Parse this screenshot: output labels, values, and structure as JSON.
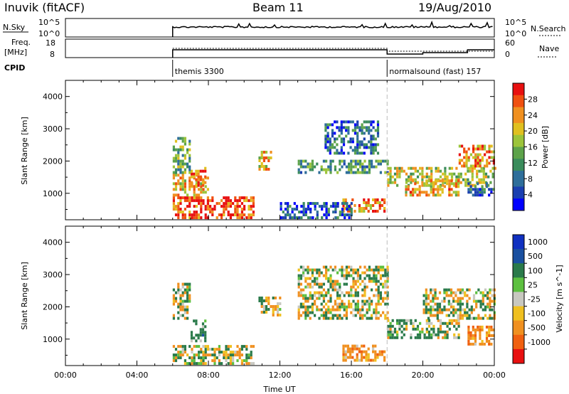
{
  "header": {
    "station": "Inuvik (fitACF)",
    "beam": "Beam 11",
    "date": "19/Aug/2010"
  },
  "status_panel": {
    "nsky_label": "N.Sky",
    "nsky_ticks": [
      "10^5",
      "10^0"
    ],
    "nsearch_label": "N.Search",
    "nsearch_ticks": [
      "10^5",
      "10^0"
    ],
    "freq_label": "Freq.",
    "freq_unit": "[MHz]",
    "freq_ticks": [
      "18",
      "8"
    ],
    "nave_label": "Nave",
    "nave_ticks": [
      "60",
      "0"
    ],
    "cpid_label": "CPID",
    "cpid_segments": [
      {
        "label": "themis 3300",
        "start_hour": 6.0
      },
      {
        "label": "normalsound (fast) 157",
        "start_hour": 18.0
      }
    ]
  },
  "chart_data": [
    {
      "type": "heatmap",
      "title": "",
      "xlabel": "",
      "ylabel": "Slant Range [km]",
      "xlim": [
        0,
        24
      ],
      "ylim": [
        180,
        4500
      ],
      "ytick_labels": [
        "1000",
        "2000",
        "3000",
        "4000"
      ],
      "colorbar": {
        "label": "Power [dB]",
        "range": [
          0,
          32
        ],
        "tick_labels": [
          "4",
          "8",
          "12",
          "16",
          "20",
          "24",
          "28"
        ]
      },
      "marker_line_hour": 18.0,
      "data_coverage_start_hour": 6.0,
      "blobs": [
        {
          "t0": 6.0,
          "t1": 10.5,
          "r0": 200,
          "r1": 900,
          "power": 28
        },
        {
          "t0": 6.0,
          "t1": 8.0,
          "r0": 900,
          "r1": 1600,
          "power": 22
        },
        {
          "t0": 7.0,
          "t1": 7.8,
          "r0": 1200,
          "r1": 1800,
          "power": 26
        },
        {
          "t0": 6.0,
          "t1": 7.0,
          "r0": 1600,
          "r1": 2700,
          "power": 14
        },
        {
          "t0": 10.8,
          "t1": 11.5,
          "r0": 1700,
          "r1": 2300,
          "power": 22
        },
        {
          "t0": 13.0,
          "t1": 18.0,
          "r0": 1600,
          "r1": 2000,
          "power": 12
        },
        {
          "t0": 14.5,
          "t1": 17.5,
          "r0": 2200,
          "r1": 3200,
          "power": 8
        },
        {
          "t0": 15.5,
          "t1": 17.8,
          "r0": 400,
          "r1": 800,
          "power": 24
        },
        {
          "t0": 18.0,
          "t1": 24.0,
          "r0": 1200,
          "r1": 1800,
          "power": 18
        },
        {
          "t0": 19.0,
          "t1": 22.0,
          "r0": 900,
          "r1": 1400,
          "power": 22
        },
        {
          "t0": 22.0,
          "t1": 24.0,
          "r0": 1800,
          "r1": 2500,
          "power": 24
        },
        {
          "t0": 22.5,
          "t1": 24.0,
          "r0": 900,
          "r1": 1300,
          "power": 8
        },
        {
          "t0": 12.0,
          "t1": 16.0,
          "r0": 200,
          "r1": 700,
          "power": 6
        }
      ]
    },
    {
      "type": "heatmap",
      "title": "",
      "xlabel": "Time UT",
      "ylabel": "Slant Range [km]",
      "xlim": [
        0,
        24
      ],
      "ylim": [
        180,
        4500
      ],
      "xtick_labels": [
        "00:00",
        "04:00",
        "08:00",
        "12:00",
        "16:00",
        "20:00",
        "00:00"
      ],
      "ytick_labels": [
        "1000",
        "2000",
        "3000",
        "4000"
      ],
      "colorbar": {
        "label": "Velocity [m s^-1]",
        "tick_labels": [
          "1000",
          "500",
          "100",
          "25",
          "-25",
          "-100",
          "-500",
          "-1000"
        ]
      },
      "marker_line_hour": 18.0,
      "data_coverage_start_hour": 6.0,
      "blobs": [
        {
          "t0": 6.0,
          "t1": 10.5,
          "r0": 200,
          "r1": 800,
          "velocity": 0
        },
        {
          "t0": 7.0,
          "t1": 7.8,
          "r0": 900,
          "r1": 1600,
          "velocity": 300
        },
        {
          "t0": 6.0,
          "t1": 7.0,
          "r0": 1600,
          "r1": 2700,
          "velocity": 0
        },
        {
          "t0": 10.8,
          "t1": 12.0,
          "r0": 1700,
          "r1": 2300,
          "velocity": 0
        },
        {
          "t0": 13.0,
          "t1": 18.0,
          "r0": 1600,
          "r1": 3200,
          "velocity": 0
        },
        {
          "t0": 15.5,
          "t1": 17.8,
          "r0": 300,
          "r1": 800,
          "velocity": -300
        },
        {
          "t0": 18.0,
          "t1": 22.0,
          "r0": 1000,
          "r1": 1600,
          "velocity": 150
        },
        {
          "t0": 20.0,
          "t1": 24.0,
          "r0": 1600,
          "r1": 2500,
          "velocity": 0
        },
        {
          "t0": 22.5,
          "t1": 24.0,
          "r0": 800,
          "r1": 1400,
          "velocity": -300
        }
      ]
    }
  ]
}
